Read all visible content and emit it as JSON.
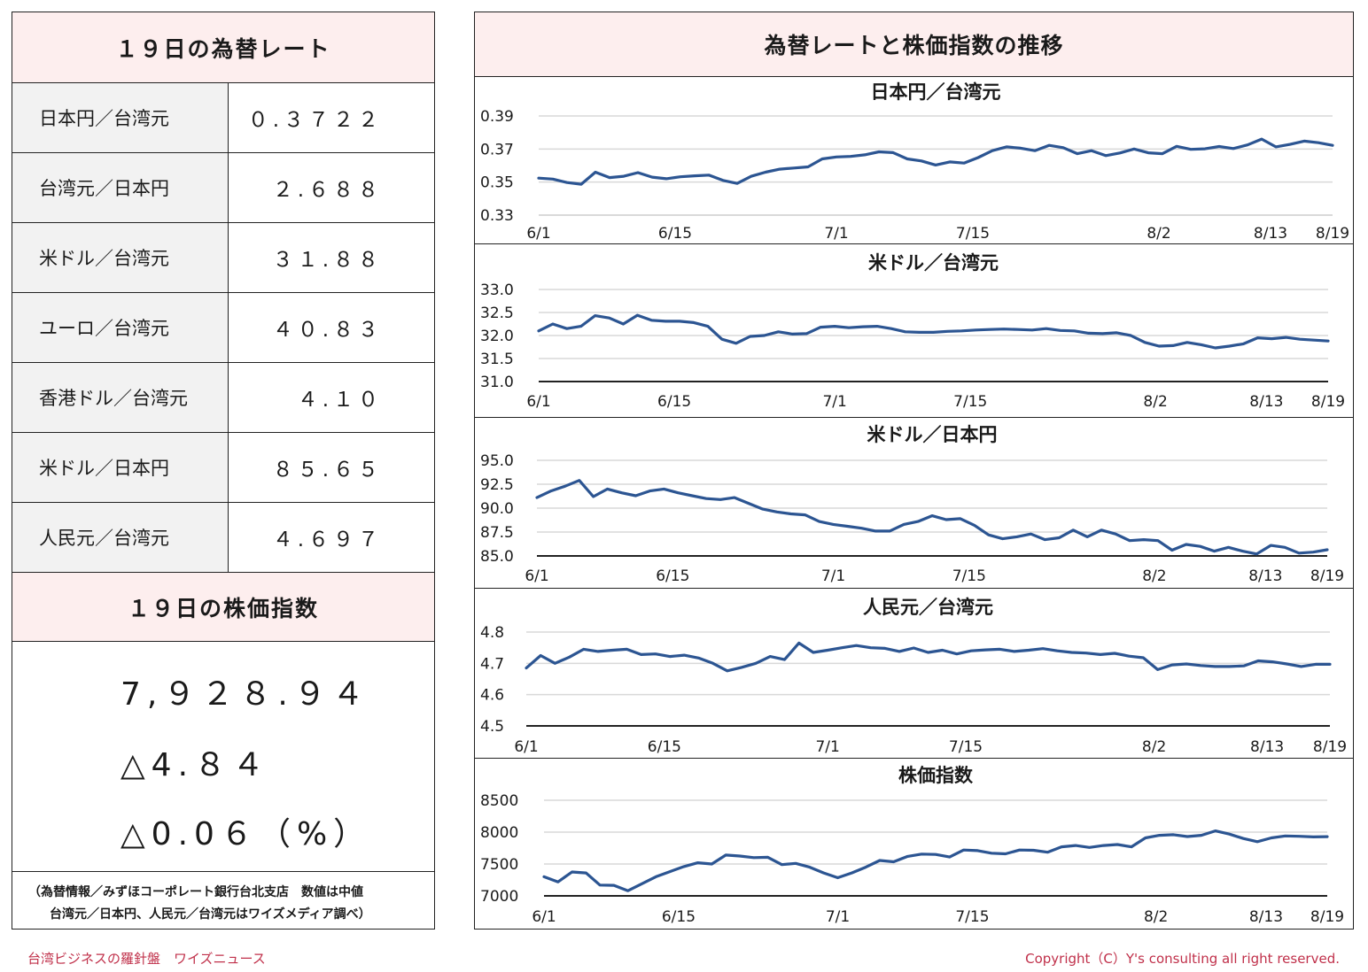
{
  "left": {
    "rates_title": "１９日の為替レート",
    "rates": [
      {
        "label": "日本円／台湾元",
        "value": "０.３７２２"
      },
      {
        "label": "台湾元／日本円",
        "value": "２.６８８"
      },
      {
        "label": "米ドル／台湾元",
        "value": "３１.８８"
      },
      {
        "label": "ユーロ／台湾元",
        "value": "４０.８３"
      },
      {
        "label": "香港ドル／台湾元",
        "value": "４.１０"
      },
      {
        "label": "米ドル／日本円",
        "value": "８５.６５"
      },
      {
        "label": "人民元／台湾元",
        "value": "４.６９７"
      }
    ],
    "stock_title": "１９日の株価指数",
    "stock_value": "7,９２８.９４",
    "stock_change": "△4.８４",
    "stock_pct": "△0.0６（%）",
    "note_line1": "（為替情報／みずほコーポレート銀行台北支店　数値は中値",
    "note_line2": "台湾元／日本円、人民元／台湾元はワイズメディア調べ）"
  },
  "right": {
    "title": "為替レートと株価指数の推移"
  },
  "footer": {
    "left": "台湾ビジネスの羅針盤　ワイズニュース",
    "right": "Copyright（C）Y's consulting all right reserved."
  },
  "colors": {
    "line": "#2c5592",
    "header_bg": "#fdeeee",
    "footer_text": "#c0304a"
  },
  "chart_data": [
    {
      "type": "line",
      "title": "日本円／台湾元",
      "x_ticks": [
        "6/1",
        "6/15",
        "7/1",
        "7/15",
        "8/2",
        "8/13",
        "8/19"
      ],
      "y_ticks": [
        "0.39",
        "0.37",
        "0.35",
        "0.33"
      ],
      "ylim": [
        0.33,
        0.39
      ],
      "values": [
        0.3524,
        0.3518,
        0.3497,
        0.3487,
        0.356,
        0.3527,
        0.3535,
        0.3557,
        0.353,
        0.352,
        0.3532,
        0.3538,
        0.3542,
        0.351,
        0.3492,
        0.3535,
        0.356,
        0.3578,
        0.3585,
        0.3592,
        0.364,
        0.3652,
        0.3655,
        0.3665,
        0.3683,
        0.3678,
        0.364,
        0.3628,
        0.3603,
        0.3622,
        0.3615,
        0.3648,
        0.369,
        0.3713,
        0.3705,
        0.369,
        0.3722,
        0.3708,
        0.3672,
        0.369,
        0.366,
        0.3676,
        0.37,
        0.3677,
        0.3672,
        0.3716,
        0.3698,
        0.3701,
        0.3715,
        0.3703,
        0.3725,
        0.376,
        0.3713,
        0.3728,
        0.3748,
        0.3738,
        0.3722
      ]
    },
    {
      "type": "line",
      "title": "米ドル／台湾元",
      "x_ticks": [
        "6/1",
        "6/15",
        "7/1",
        "7/15",
        "8/2",
        "8/13",
        "8/19"
      ],
      "y_ticks": [
        "33.0",
        "32.5",
        "32.0",
        "31.5",
        "31.0"
      ],
      "ylim": [
        31.0,
        33.0
      ],
      "values": [
        32.1,
        32.25,
        32.15,
        32.2,
        32.43,
        32.38,
        32.25,
        32.44,
        32.33,
        32.31,
        32.31,
        32.28,
        32.2,
        31.92,
        31.83,
        31.98,
        32.0,
        32.08,
        32.03,
        32.04,
        32.18,
        32.2,
        32.17,
        32.19,
        32.2,
        32.15,
        32.08,
        32.07,
        32.07,
        32.09,
        32.1,
        32.12,
        32.13,
        32.14,
        32.13,
        32.12,
        32.15,
        32.11,
        32.1,
        32.05,
        32.04,
        32.06,
        32.0,
        31.85,
        31.77,
        31.78,
        31.85,
        31.8,
        31.73,
        31.77,
        31.82,
        31.95,
        31.93,
        31.96,
        31.92,
        31.9,
        31.88
      ]
    },
    {
      "type": "line",
      "title": "米ドル／日本円",
      "x_ticks": [
        "6/1",
        "6/15",
        "7/1",
        "7/15",
        "8/2",
        "8/13",
        "8/19"
      ],
      "y_ticks": [
        "95.0",
        "92.5",
        "90.0",
        "87.5",
        "85.0"
      ],
      "ylim": [
        85.0,
        95.0
      ],
      "values": [
        91.1,
        91.8,
        92.3,
        92.9,
        91.2,
        92.0,
        91.6,
        91.3,
        91.8,
        92.0,
        91.6,
        91.3,
        91.0,
        90.9,
        91.1,
        90.5,
        89.9,
        89.6,
        89.4,
        89.3,
        88.6,
        88.3,
        88.1,
        87.9,
        87.6,
        87.6,
        88.3,
        88.6,
        89.2,
        88.8,
        88.9,
        88.2,
        87.2,
        86.8,
        87.0,
        87.3,
        86.7,
        86.9,
        87.7,
        87.0,
        87.7,
        87.3,
        86.6,
        86.7,
        86.6,
        85.6,
        86.2,
        86.0,
        85.5,
        85.9,
        85.5,
        85.2,
        86.1,
        85.9,
        85.3,
        85.4,
        85.65
      ]
    },
    {
      "type": "line",
      "title": "人民元／台湾元",
      "x_ticks": [
        "6/1",
        "6/15",
        "7/1",
        "7/15",
        "8/2",
        "8/13",
        "8/19"
      ],
      "y_ticks": [
        "4.8",
        "4.7",
        "4.6",
        "4.5"
      ],
      "ylim": [
        4.5,
        4.8
      ],
      "values": [
        4.685,
        4.725,
        4.7,
        4.72,
        4.745,
        4.738,
        4.742,
        4.745,
        4.728,
        4.73,
        4.722,
        4.726,
        4.717,
        4.7,
        4.676,
        4.687,
        4.7,
        4.722,
        4.712,
        4.765,
        4.735,
        4.742,
        4.75,
        4.757,
        4.75,
        4.748,
        4.738,
        4.749,
        4.735,
        4.742,
        4.73,
        4.74,
        4.743,
        4.745,
        4.738,
        4.742,
        4.747,
        4.74,
        4.735,
        4.733,
        4.728,
        4.732,
        4.723,
        4.718,
        4.68,
        4.695,
        4.698,
        4.693,
        4.69,
        4.69,
        4.692,
        4.708,
        4.705,
        4.698,
        4.69,
        4.697,
        4.697
      ]
    },
    {
      "type": "line",
      "title": "株価指数",
      "x_ticks": [
        "6/1",
        "6/15",
        "7/1",
        "7/15",
        "8/2",
        "8/13",
        "8/19"
      ],
      "y_ticks": [
        "8500",
        "8000",
        "7500",
        "7000"
      ],
      "ylim": [
        7000,
        8500
      ],
      "values": [
        7300,
        7220,
        7375,
        7360,
        7170,
        7165,
        7080,
        7190,
        7300,
        7380,
        7460,
        7520,
        7500,
        7640,
        7625,
        7600,
        7605,
        7490,
        7510,
        7450,
        7360,
        7285,
        7360,
        7450,
        7555,
        7535,
        7620,
        7655,
        7650,
        7610,
        7720,
        7710,
        7670,
        7660,
        7720,
        7715,
        7685,
        7770,
        7790,
        7760,
        7790,
        7805,
        7770,
        7910,
        7950,
        7960,
        7930,
        7950,
        8020,
        7970,
        7900,
        7850,
        7910,
        7940,
        7935,
        7925,
        7928.94
      ]
    }
  ]
}
